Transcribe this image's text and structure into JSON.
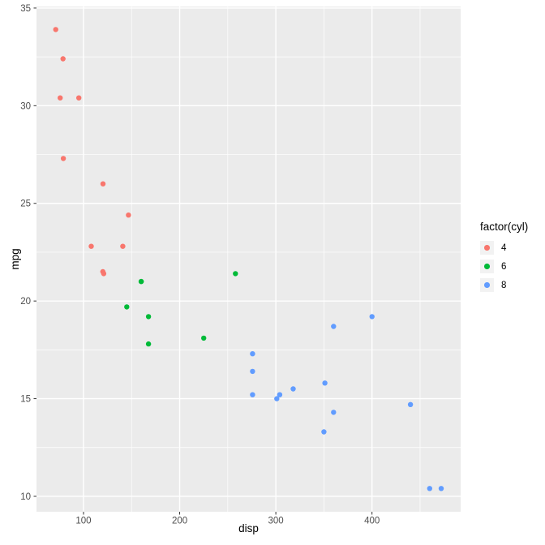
{
  "chart_data": {
    "type": "scatter",
    "xlabel": "disp",
    "ylabel": "mpg",
    "x_domain": [
      51.1,
      492.2
    ],
    "y_domain": [
      9.21,
      35.08
    ],
    "x_ticks": [
      100,
      200,
      300,
      400
    ],
    "y_ticks": [
      10,
      15,
      20,
      25,
      30,
      35
    ],
    "x_minor": [
      150,
      250,
      350,
      450
    ],
    "y_minor": [
      12.5,
      17.5,
      22.5,
      27.5,
      32.5
    ],
    "grid": true,
    "point_radius": 3.2,
    "colors": {
      "panel_background": "#EBEBEB",
      "grid": "#FFFFFF",
      "tick_text": "#4D4D4D",
      "tick_mark": "#333333",
      "axis_title": "#000000",
      "legend_key": "#F2F2F2"
    },
    "legend": {
      "title": "factor(cyl)",
      "position": "right",
      "entries": [
        {
          "label": "4",
          "color": "#F8766D"
        },
        {
          "label": "6",
          "color": "#00BA38"
        },
        {
          "label": "8",
          "color": "#619CFF"
        }
      ]
    },
    "series": [
      {
        "name": "4",
        "color": "#F8766D",
        "points": [
          [
            71.1,
            33.9
          ],
          [
            75.7,
            30.4
          ],
          [
            78.7,
            32.4
          ],
          [
            79.0,
            27.3
          ],
          [
            95.1,
            30.4
          ],
          [
            108.0,
            22.8
          ],
          [
            120.1,
            21.5
          ],
          [
            120.3,
            26.0
          ],
          [
            121.0,
            21.4
          ],
          [
            140.8,
            22.8
          ],
          [
            146.7,
            24.4
          ]
        ]
      },
      {
        "name": "6",
        "color": "#00BA38",
        "points": [
          [
            145.0,
            19.7
          ],
          [
            160.0,
            21.0
          ],
          [
            160.0,
            21.0
          ],
          [
            167.6,
            19.2
          ],
          [
            167.6,
            17.8
          ],
          [
            225.0,
            18.1
          ],
          [
            258.0,
            21.4
          ]
        ]
      },
      {
        "name": "8",
        "color": "#619CFF",
        "points": [
          [
            275.8,
            16.4
          ],
          [
            275.8,
            17.3
          ],
          [
            275.8,
            15.2
          ],
          [
            301.0,
            15.0
          ],
          [
            304.0,
            15.2
          ],
          [
            318.0,
            15.5
          ],
          [
            350.0,
            13.3
          ],
          [
            351.0,
            15.8
          ],
          [
            360.0,
            18.7
          ],
          [
            360.0,
            14.3
          ],
          [
            400.0,
            19.2
          ],
          [
            440.0,
            14.7
          ],
          [
            460.0,
            10.4
          ],
          [
            472.0,
            10.4
          ]
        ]
      }
    ]
  }
}
